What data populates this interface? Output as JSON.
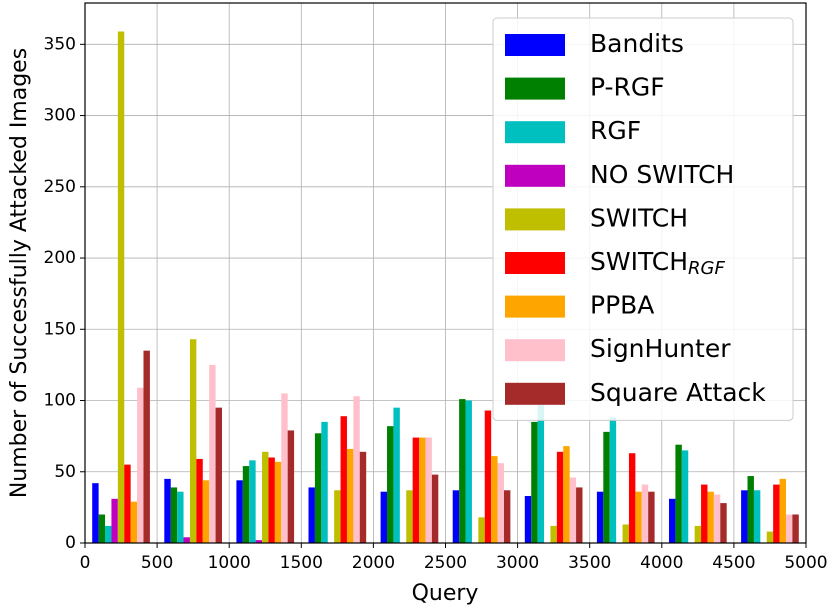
{
  "chart_data": {
    "type": "histogram",
    "x_label": "Query",
    "y_label": "Number of Successfully Attacked Images",
    "bins": [
      0,
      500,
      1000,
      1500,
      2000,
      2500,
      3000,
      3500,
      4000,
      4500,
      5000
    ],
    "series": [
      {
        "name": "Bandits",
        "color": "#0000ff",
        "values": [
          42,
          45,
          44,
          39,
          36,
          37,
          33,
          36,
          31,
          37
        ]
      },
      {
        "name": "P-RGF",
        "color": "#008000",
        "values": [
          20,
          39,
          54,
          77,
          82,
          101,
          85,
          78,
          69,
          47
        ]
      },
      {
        "name": "RGF",
        "color": "#00bfbf",
        "values": [
          12,
          36,
          58,
          85,
          95,
          100,
          97,
          88,
          65,
          37
        ]
      },
      {
        "name": "NO SWITCH",
        "color": "#bf00bf",
        "values": [
          31,
          4,
          2,
          0,
          0,
          0,
          0,
          0,
          0,
          0
        ]
      },
      {
        "name": "SWITCH",
        "color": "#bfbf00",
        "values": [
          359,
          143,
          64,
          37,
          37,
          18,
          12,
          13,
          12,
          8
        ]
      },
      {
        "name": "SWITCH",
        "name_subscript": "RGF",
        "color": "#ff0000",
        "values": [
          55,
          59,
          60,
          89,
          74,
          93,
          64,
          63,
          41,
          41
        ]
      },
      {
        "name": "PPBA",
        "color": "#ffa500",
        "values": [
          29,
          44,
          57,
          66,
          74,
          61,
          68,
          36,
          36,
          45
        ]
      },
      {
        "name": "SignHunter",
        "color": "#ffc0cb",
        "values": [
          109,
          125,
          105,
          103,
          74,
          56,
          46,
          41,
          34,
          20
        ]
      },
      {
        "name": "Square Attack",
        "color": "#a52a2a",
        "values": [
          135,
          95,
          79,
          64,
          48,
          37,
          39,
          36,
          28,
          20
        ]
      }
    ],
    "xlim": [
      0,
      5000
    ],
    "xticks": [
      0,
      500,
      1000,
      1500,
      2000,
      2500,
      3000,
      3500,
      4000,
      4500,
      5000
    ],
    "ylim": [
      0,
      379
    ],
    "yticks": [
      0,
      50,
      100,
      150,
      200,
      250,
      300,
      350
    ],
    "grid": true,
    "legend": "upper right"
  }
}
